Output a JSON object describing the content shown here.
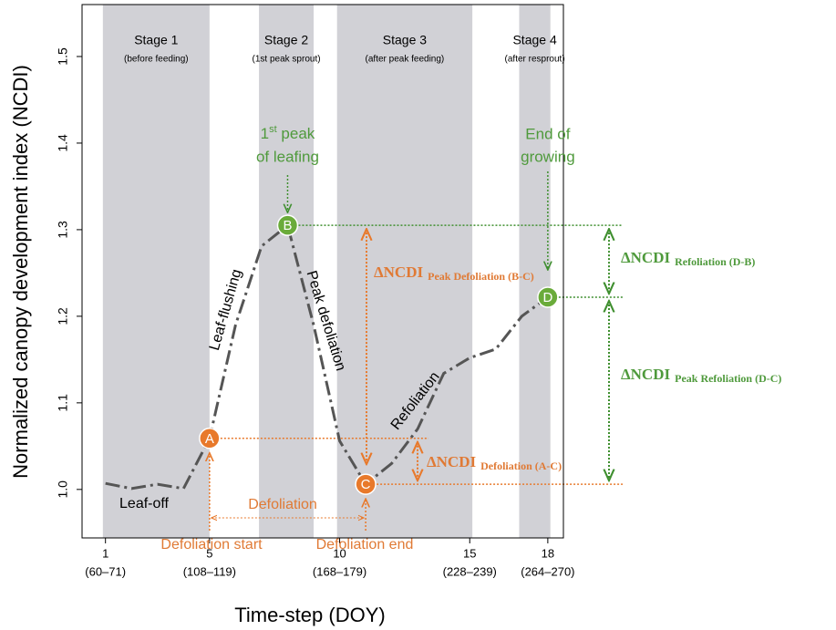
{
  "chart_data": {
    "type": "line",
    "xlabel": "Time-step (DOY)",
    "ylabel": "Normalized canopy development index (NCDI)",
    "x": [
      1,
      2,
      3,
      4,
      5,
      6,
      7,
      8,
      9,
      10,
      11,
      12,
      13,
      14,
      15,
      16,
      17,
      18
    ],
    "series": [
      {
        "color": "#555555",
        "values": [
          1.007,
          1.001,
          1.006,
          1.001,
          1.059,
          1.19,
          1.281,
          1.305,
          1.19,
          1.056,
          1.006,
          1.03,
          1.07,
          1.134,
          1.152,
          1.162,
          1.2,
          1.222
        ]
      }
    ],
    "xlim": [
      0.1,
      18.6
    ],
    "ylim": [
      0.944,
      1.56
    ],
    "xticks": [
      1,
      5,
      10,
      15,
      18
    ],
    "xtick_ranges": [
      "(60–71)",
      "(108–119)",
      "(168–179)",
      "(228–239)",
      "(264–270)"
    ],
    "yticks": [
      {
        "value": 1,
        "label": "1.0"
      },
      1.1,
      1.2,
      1.3,
      1.4,
      1.5
    ],
    "stage_color": "#d1d1d6",
    "stages": [
      {
        "label": "Stage 1",
        "note": "(before feeding)",
        "start": 0.9,
        "end": 5
      },
      {
        "label": "Stage 2",
        "note": "(1st peak sprout)",
        "start": 6.9,
        "end": 9
      },
      {
        "label": "Stage 3",
        "note": "(after peak feeding)",
        "start": 9.9,
        "end": 15.1
      },
      {
        "label": "Stage 4",
        "note": "(after resprout)",
        "start": 16.9,
        "end": 18.1
      }
    ],
    "points": [
      {
        "index": 4,
        "label": "A",
        "color": "#e8792b"
      },
      {
        "index": 7,
        "label": "B",
        "color": "#6aab3a"
      },
      {
        "index": 10,
        "label": "C",
        "color": "#e8792b"
      },
      {
        "index": 17,
        "label": "D",
        "color": "#6aab3a"
      }
    ],
    "annotations": {
      "leaf_off": "Leaf-off",
      "leaf_flushing": "Leaf-flushing",
      "peak_defoliation": "Peak defoliation",
      "refoliation": "Refoliation",
      "first_peak": {
        "num": "1",
        "sup": "st",
        "rest": " peak",
        "line2": "of leafing"
      },
      "end_growing": {
        "line1": "End of",
        "line2": "growing"
      },
      "defoliation": "Defoliation",
      "defoliation_start": "Defoliation start",
      "defoliation_end": "Defoliation end",
      "delta_bc": {
        "main": "ΔNCDI",
        "sub": "Peak Defoliation (B-C)"
      },
      "delta_ac": {
        "main": "ΔNCDI",
        "sub": "Defoliation (A-C)"
      },
      "delta_db": {
        "main": "ΔNCDI",
        "sub": "Refoliation (D-B)"
      },
      "delta_dc": {
        "main": "ΔNCDI",
        "sub": "Peak Refoliation (D-C)"
      }
    }
  }
}
